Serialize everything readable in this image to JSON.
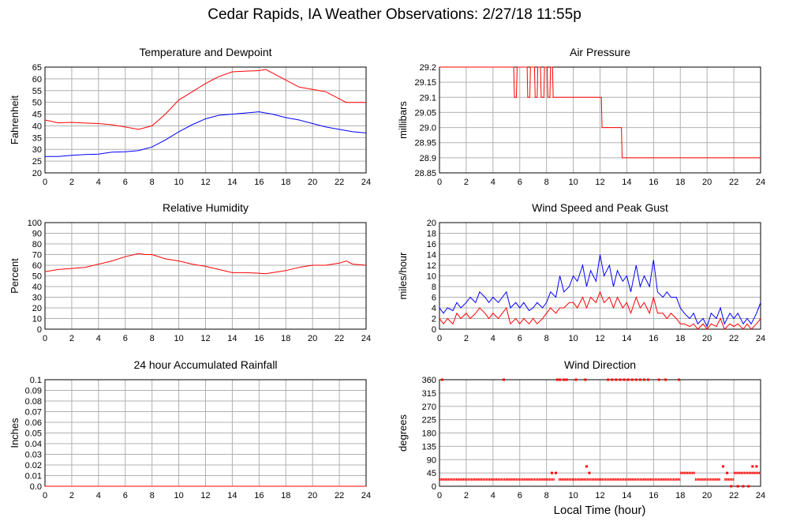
{
  "title": "Cedar Rapids, IA Weather Observations: 2/27/18 11:55p",
  "xlabel_bottom": "Local Time (hour)",
  "colors": {
    "red": "#ff0000",
    "blue": "#0000ff",
    "grid": "#b0b0b0",
    "frame": "#000000"
  },
  "chart_data": [
    {
      "type": "line",
      "title": "Temperature and Dewpoint",
      "ylabel": "Fahrenheit",
      "xlim": [
        0,
        24
      ],
      "ylim": [
        20,
        65
      ],
      "x_ticks": [
        0,
        2,
        4,
        6,
        8,
        10,
        12,
        14,
        16,
        18,
        20,
        22,
        24
      ],
      "y_ticks": [
        "20",
        "25",
        "30",
        "35",
        "40",
        "45",
        "50",
        "55",
        "60",
        "65"
      ],
      "grid": true,
      "series": [
        {
          "color": "red",
          "x": [
            0,
            1,
            2,
            3,
            4,
            5,
            6,
            7,
            8,
            9,
            10,
            11,
            12,
            13,
            14,
            15,
            16,
            16.5,
            17,
            18,
            19,
            20,
            21,
            22,
            22.5,
            23,
            24
          ],
          "y": [
            42.5,
            41.3,
            41.5,
            41.2,
            41,
            40.5,
            39.5,
            38.5,
            40,
            45,
            51,
            54.5,
            58,
            61,
            63,
            63.3,
            63.5,
            64,
            62.5,
            59.5,
            56.5,
            55.5,
            54.5,
            51.5,
            50,
            50,
            50
          ]
        },
        {
          "color": "blue",
          "x": [
            0,
            1,
            2,
            3,
            4,
            5,
            6,
            7,
            8,
            9,
            10,
            11,
            12,
            13,
            14,
            15,
            16,
            17,
            18,
            19,
            20,
            21,
            22,
            23,
            24
          ],
          "y": [
            27,
            27,
            27.5,
            27.8,
            28,
            28.8,
            29,
            29.5,
            31,
            34,
            37.5,
            40.5,
            43,
            44.5,
            45,
            45.5,
            46,
            45,
            43.5,
            42.5,
            41,
            39.5,
            38.5,
            37.5,
            37
          ]
        }
      ]
    },
    {
      "type": "line",
      "title": "Air Pressure",
      "ylabel": "millibars",
      "xlim": [
        0,
        24
      ],
      "ylim": [
        28.85,
        29.2
      ],
      "x_ticks": [
        0,
        2,
        4,
        6,
        8,
        10,
        12,
        14,
        16,
        18,
        20,
        22,
        24
      ],
      "y_ticks": [
        "28.85",
        "28.9",
        "28.95",
        "29.0",
        "29.05",
        "29.1",
        "29.15",
        "29.2"
      ],
      "grid": true,
      "series": [
        {
          "color": "red",
          "x": [
            0,
            5.55,
            5.6,
            5.75,
            5.8,
            6.55,
            6.6,
            6.75,
            6.8,
            7.1,
            7.15,
            7.3,
            7.35,
            7.55,
            7.6,
            7.8,
            7.85,
            8.05,
            8.1,
            8.25,
            8.3,
            8.45,
            8.5,
            8.6,
            8.65,
            12.1,
            12.15,
            13.6,
            13.65,
            24
          ],
          "y": [
            29.2,
            29.2,
            29.1,
            29.1,
            29.2,
            29.2,
            29.1,
            29.1,
            29.2,
            29.2,
            29.1,
            29.1,
            29.2,
            29.2,
            29.1,
            29.1,
            29.2,
            29.2,
            29.1,
            29.1,
            29.2,
            29.2,
            29.1,
            29.1,
            29.1,
            29.1,
            29.0,
            29.0,
            28.9,
            28.9
          ]
        }
      ]
    },
    {
      "type": "line",
      "title": "Relative Humidity",
      "ylabel": "Percent",
      "xlim": [
        0,
        24
      ],
      "ylim": [
        0,
        100
      ],
      "x_ticks": [
        0,
        2,
        4,
        6,
        8,
        10,
        12,
        14,
        16,
        18,
        20,
        22,
        24
      ],
      "y_ticks": [
        "0",
        "10",
        "20",
        "30",
        "40",
        "50",
        "60",
        "70",
        "80",
        "90",
        "100"
      ],
      "grid": true,
      "series": [
        {
          "color": "red",
          "x": [
            0,
            1,
            2,
            3,
            4,
            5,
            6,
            7,
            7.5,
            8,
            9,
            10,
            11,
            12,
            13,
            14,
            15,
            16,
            16.5,
            17,
            18,
            19,
            20,
            21,
            22,
            22.5,
            23,
            24
          ],
          "y": [
            54,
            56,
            57,
            58,
            61,
            64,
            68,
            71,
            70,
            70,
            66,
            64,
            61,
            59,
            56,
            53,
            53,
            52.5,
            52,
            53,
            55,
            58,
            60,
            60,
            62,
            64,
            61,
            60
          ]
        }
      ]
    },
    {
      "type": "line",
      "title": "Wind Speed and Peak Gust",
      "ylabel": "miles/hour",
      "xlim": [
        0,
        24
      ],
      "ylim": [
        0,
        20
      ],
      "x_ticks": [
        0,
        2,
        4,
        6,
        8,
        10,
        12,
        14,
        16,
        18,
        20,
        22,
        24
      ],
      "y_ticks": [
        "0",
        "2",
        "4",
        "6",
        "8",
        "10",
        "12",
        "14",
        "16",
        "18",
        "20"
      ],
      "grid": true,
      "series": [
        {
          "color": "blue",
          "x": [
            0,
            0.3,
            0.6,
            1,
            1.3,
            1.6,
            2,
            2.3,
            2.7,
            3,
            3.4,
            3.7,
            4,
            4.4,
            4.7,
            5,
            5.3,
            5.7,
            6,
            6.3,
            6.7,
            7,
            7.3,
            7.7,
            8,
            8.3,
            8.7,
            9,
            9.3,
            9.7,
            10,
            10.3,
            10.7,
            11,
            11.3,
            11.7,
            12,
            12.3,
            12.7,
            13,
            13.3,
            13.7,
            14,
            14.3,
            14.7,
            15,
            15.3,
            15.7,
            16,
            16.3,
            16.7,
            17,
            17.3,
            17.7,
            18,
            18.3,
            18.7,
            19,
            19.3,
            19.7,
            20,
            20.3,
            20.7,
            21,
            21.3,
            21.7,
            22,
            22.3,
            22.7,
            23,
            23.3,
            23.7,
            24
          ],
          "y": [
            4,
            3,
            4,
            3.5,
            5,
            4,
            5,
            6,
            5,
            7,
            6,
            5,
            6,
            5,
            6,
            7,
            4,
            5,
            4,
            5,
            3.5,
            4,
            5,
            4,
            5,
            7,
            6,
            10,
            7,
            8,
            10,
            9,
            12,
            8,
            11,
            9,
            14,
            10,
            12,
            8,
            11,
            9,
            10,
            7,
            12,
            8,
            10,
            8,
            13,
            7,
            6,
            7,
            6,
            6,
            4,
            3,
            2,
            3,
            1,
            2,
            0.5,
            3,
            2,
            4,
            1,
            3,
            2,
            3,
            1,
            2,
            1,
            3,
            5
          ]
        },
        {
          "color": "red",
          "x": [
            0,
            0.3,
            0.6,
            1,
            1.3,
            1.6,
            2,
            2.3,
            2.7,
            3,
            3.4,
            3.7,
            4,
            4.4,
            4.7,
            5,
            5.3,
            5.7,
            6,
            6.3,
            6.7,
            7,
            7.3,
            7.7,
            8,
            8.3,
            8.7,
            9,
            9.3,
            9.7,
            10,
            10.3,
            10.7,
            11,
            11.3,
            11.7,
            12,
            12.3,
            12.7,
            13,
            13.3,
            13.7,
            14,
            14.3,
            14.7,
            15,
            15.3,
            15.7,
            16,
            16.3,
            16.7,
            17,
            17.3,
            17.7,
            18,
            18.3,
            18.7,
            19,
            19.3,
            19.7,
            20,
            20.3,
            20.7,
            21,
            21.3,
            21.7,
            22,
            22.3,
            22.7,
            23,
            23.3,
            23.7,
            24
          ],
          "y": [
            2,
            1,
            2,
            1,
            3,
            2,
            3,
            2,
            3,
            4,
            3,
            2,
            3,
            2,
            3,
            4,
            1,
            2,
            1,
            2,
            1,
            2,
            1,
            2,
            3,
            4,
            3,
            4,
            4,
            5,
            5,
            4,
            6,
            4,
            6,
            5,
            7,
            5,
            6,
            4,
            6,
            4,
            5,
            3,
            6,
            4,
            5,
            3,
            6,
            3,
            3,
            2,
            3,
            2,
            1,
            1,
            0.5,
            1,
            0,
            1,
            0,
            1,
            0.5,
            2,
            0,
            1,
            0.5,
            1,
            0,
            1,
            0,
            1,
            2
          ]
        }
      ]
    },
    {
      "type": "line",
      "title": "24 hour Accumulated Rainfall",
      "ylabel": "Inches",
      "xlim": [
        0,
        24
      ],
      "ylim": [
        0,
        0.1
      ],
      "x_ticks": [
        0,
        2,
        4,
        6,
        8,
        10,
        12,
        14,
        16,
        18,
        20,
        22,
        24
      ],
      "y_ticks": [
        "0.0",
        "0.01",
        "0.02",
        "0.03",
        "0.04",
        "0.05",
        "0.06",
        "0.07",
        "0.08",
        "0.09",
        "0.1"
      ],
      "grid": true,
      "series": [
        {
          "color": "red",
          "x": [
            0,
            24
          ],
          "y": [
            0,
            0
          ]
        }
      ]
    },
    {
      "type": "scatter",
      "title": "Wind Direction",
      "ylabel": "degrees",
      "xlim": [
        0,
        24
      ],
      "ylim": [
        0,
        360
      ],
      "x_ticks": [
        0,
        2,
        4,
        6,
        8,
        10,
        12,
        14,
        16,
        18,
        20,
        22,
        24
      ],
      "y_ticks": [
        "0",
        "45",
        "90",
        "135",
        "180",
        "225",
        "270",
        "315",
        "360"
      ],
      "grid": true,
      "series": [
        {
          "color": "red",
          "marker": "dot",
          "segments": [
            {
              "from": 0.0,
              "to": 8.6,
              "y": 23
            },
            {
              "from": 8.9,
              "to": 18.0,
              "y": 23
            },
            {
              "from": 18.0,
              "to": 19.1,
              "y": 45
            },
            {
              "from": 19.1,
              "to": 21.0,
              "y": 23
            },
            {
              "from": 21.3,
              "to": 22.0,
              "y": 23
            },
            {
              "from": 22.0,
              "to": 24.0,
              "y": 45
            }
          ],
          "points": [
            [
              0.2,
              360
            ],
            [
              4.8,
              360
            ],
            [
              8.8,
              360
            ],
            [
              9.0,
              360
            ],
            [
              9.3,
              360
            ],
            [
              9.5,
              360
            ],
            [
              10.2,
              360
            ],
            [
              10.9,
              360
            ],
            [
              12.6,
              360
            ],
            [
              12.9,
              360
            ],
            [
              13.2,
              360
            ],
            [
              13.5,
              360
            ],
            [
              13.8,
              360
            ],
            [
              14.1,
              360
            ],
            [
              14.4,
              360
            ],
            [
              14.7,
              360
            ],
            [
              15.0,
              360
            ],
            [
              15.3,
              360
            ],
            [
              15.6,
              360
            ],
            [
              16.4,
              360
            ],
            [
              16.9,
              360
            ],
            [
              17.9,
              360
            ],
            [
              8.4,
              45
            ],
            [
              8.7,
              45
            ],
            [
              11.0,
              67
            ],
            [
              11.2,
              45
            ],
            [
              21.2,
              67
            ],
            [
              21.5,
              45
            ],
            [
              23.4,
              67
            ],
            [
              23.7,
              67
            ],
            [
              22.3,
              0
            ],
            [
              22.7,
              0
            ],
            [
              23.1,
              0
            ],
            [
              21.8,
              0
            ]
          ]
        }
      ]
    }
  ]
}
